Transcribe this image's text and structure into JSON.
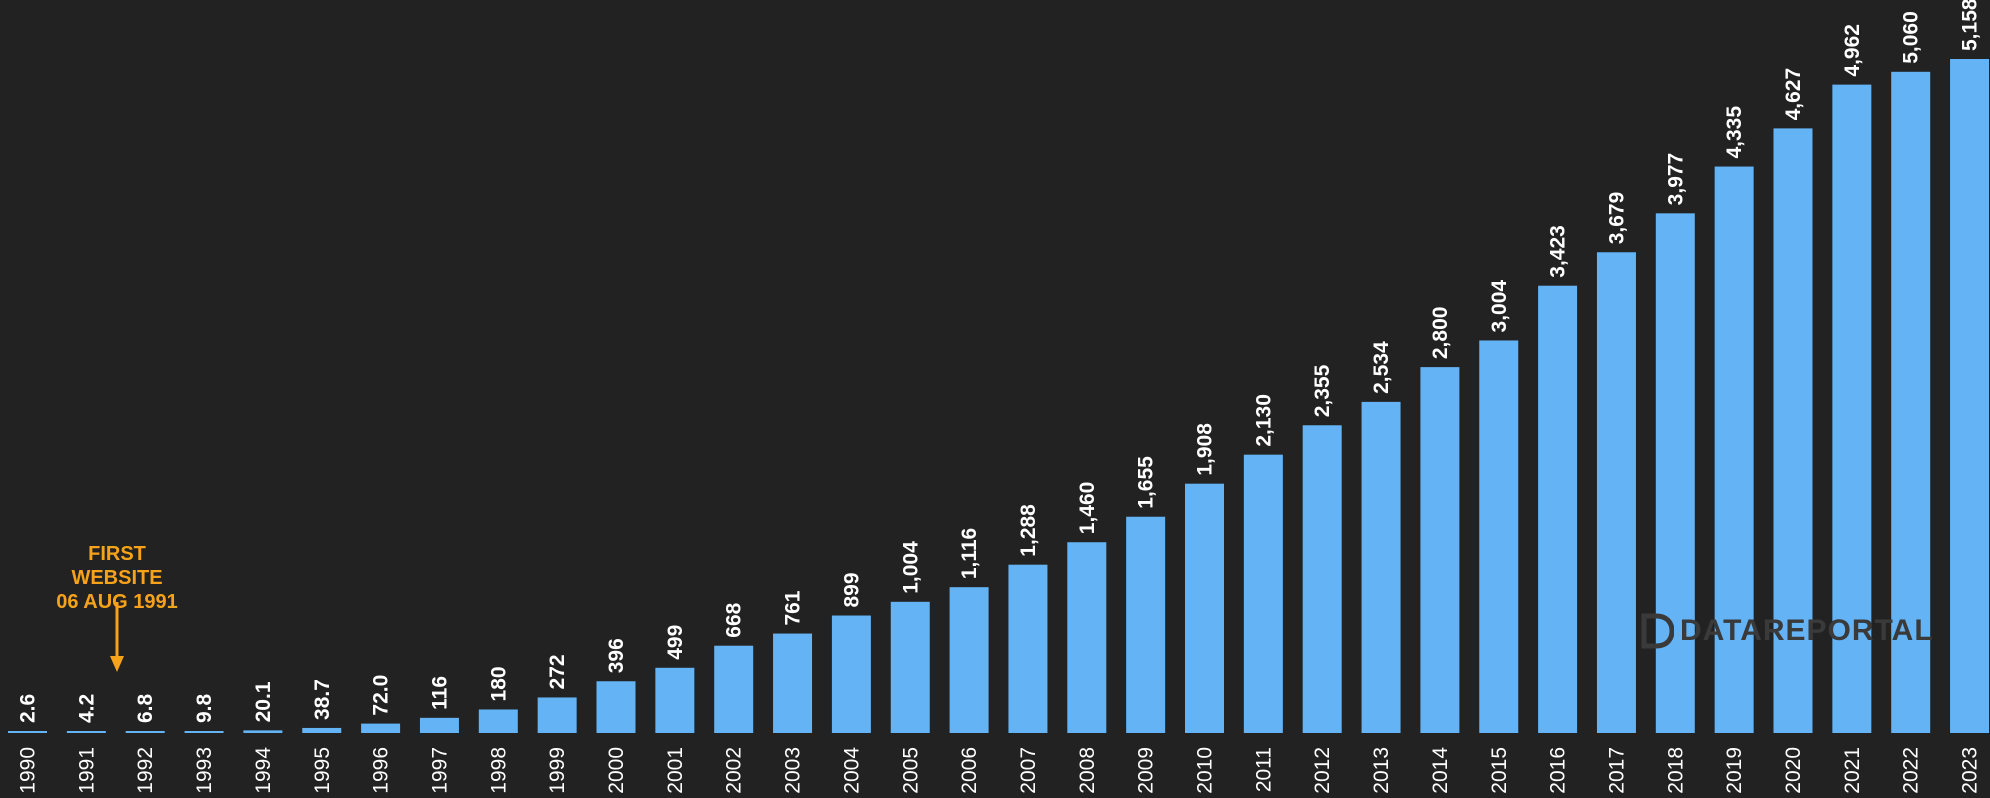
{
  "chart_data": {
    "type": "bar",
    "title": "",
    "xlabel": "",
    "ylabel": "",
    "categories": [
      "1990",
      "1991",
      "1992",
      "1993",
      "1994",
      "1995",
      "1996",
      "1997",
      "1998",
      "1999",
      "2000",
      "2001",
      "2002",
      "2003",
      "2004",
      "2005",
      "2006",
      "2007",
      "2008",
      "2009",
      "2010",
      "2011",
      "2012",
      "2013",
      "2014",
      "2015",
      "2016",
      "2017",
      "2018",
      "2019",
      "2020",
      "2021",
      "2022",
      "2023"
    ],
    "values": [
      2.6,
      4.2,
      6.8,
      9.8,
      20.1,
      38.7,
      72.0,
      116,
      180,
      272,
      396,
      499,
      668,
      761,
      899,
      1004,
      1116,
      1288,
      1460,
      1655,
      1908,
      2130,
      2355,
      2534,
      2800,
      3004,
      3423,
      3679,
      3977,
      4335,
      4627,
      4962,
      5060,
      5158
    ],
    "value_labels": [
      "2.6",
      "4.2",
      "6.8",
      "9.8",
      "20.1",
      "38.7",
      "72.0",
      "116",
      "180",
      "272",
      "396",
      "499",
      "668",
      "761",
      "899",
      "1,004",
      "1,116",
      "1,288",
      "1,460",
      "1,655",
      "1,908",
      "2,130",
      "2,355",
      "2,534",
      "2,800",
      "3,004",
      "3,423",
      "3,679",
      "3,977",
      "4,335",
      "4,627",
      "4,962",
      "5,060",
      "5,158"
    ],
    "ylim": [
      0,
      5158
    ],
    "grid": false,
    "bar_color": "#63b3f5",
    "annotation": {
      "line1": "FIRST WEBSITE",
      "line2": "06 AUG 1991",
      "color": "#f7a21b"
    }
  },
  "watermark": "DATAREPORTAL",
  "background_color": "#222222"
}
